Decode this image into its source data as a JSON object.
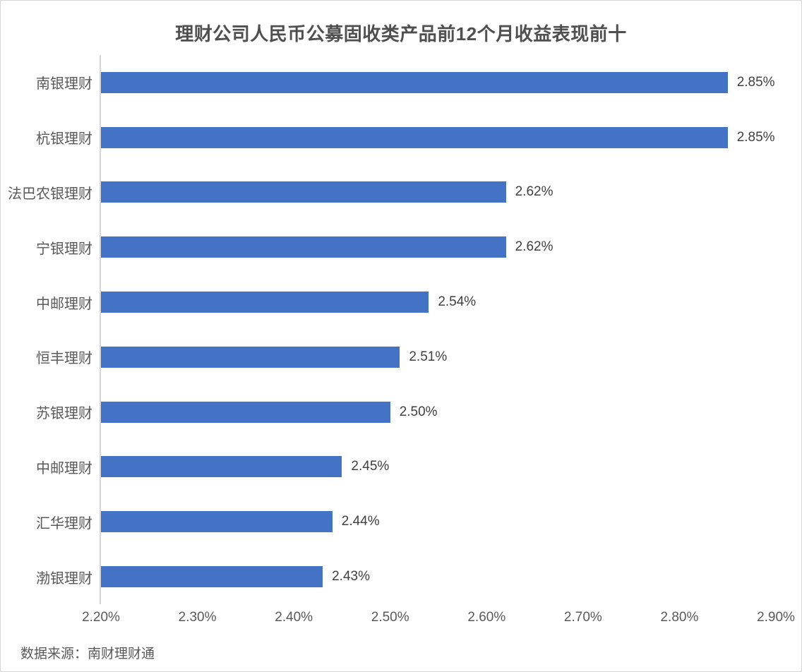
{
  "chart_data": {
    "type": "bar",
    "orientation": "horizontal",
    "title": "理财公司人民币公募固收类产品前12个月收益表现前十",
    "categories": [
      "南银理财",
      "杭银理财",
      "法巴农银理财",
      "宁银理财",
      "中邮理财",
      "恒丰理财",
      "苏银理财",
      "中邮理财",
      "汇华理财",
      "渤银理财"
    ],
    "values": [
      2.85,
      2.85,
      2.62,
      2.62,
      2.54,
      2.51,
      2.5,
      2.45,
      2.44,
      2.43
    ],
    "value_labels": [
      "2.85%",
      "2.85%",
      "2.62%",
      "2.62%",
      "2.54%",
      "2.51%",
      "2.50%",
      "2.45%",
      "2.44%",
      "2.43%"
    ],
    "xlabel": "",
    "ylabel": "",
    "xlim": [
      2.2,
      2.9
    ],
    "x_tick_values": [
      2.2,
      2.3,
      2.4,
      2.5,
      2.6,
      2.7,
      2.8,
      2.9
    ],
    "x_tick_labels": [
      "2.20%",
      "2.30%",
      "2.40%",
      "2.50%",
      "2.60%",
      "2.70%",
      "2.80%",
      "2.90%"
    ],
    "legend": "none",
    "grid": "off",
    "bar_color": "#4472C4",
    "axis_line_color": "#D6D6D6",
    "tick_label_color": "#595959",
    "category_label_color": "#595959",
    "data_label_color": "#404040",
    "title_color": "#4F4F4F"
  },
  "footer": {
    "source": "数据来源：南财理财通"
  }
}
